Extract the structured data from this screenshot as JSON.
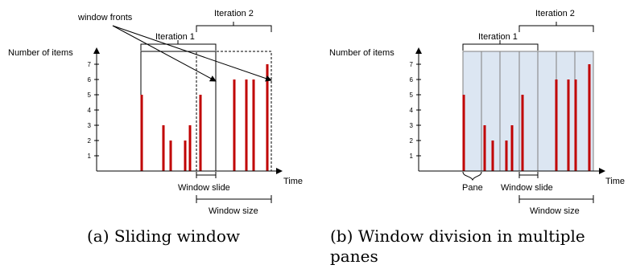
{
  "left": {
    "y_axis_label": "Number of items",
    "x_axis_label": "Time",
    "y_ticks": [
      "1",
      "2",
      "3",
      "4",
      "5",
      "6",
      "7"
    ],
    "labels": {
      "window_fronts": "window fronts",
      "iteration_1": "Iteration 1",
      "iteration_2": "Iteration 2",
      "window_slide": "Window slide",
      "window_size": "Window size"
    },
    "caption": "(a) Sliding window"
  },
  "right": {
    "y_axis_label": "Number of items",
    "x_axis_label": "Time",
    "y_ticks": [
      "1",
      "2",
      "3",
      "4",
      "5",
      "6",
      "7"
    ],
    "labels": {
      "iteration_1": "Iteration 1",
      "iteration_2": "Iteration 2",
      "pane": "Pane",
      "window_slide": "Window slide",
      "window_size": "Window size"
    },
    "caption_line1": "(b)  Window  division  in  multiple",
    "caption_line2": "panes"
  },
  "chart_data": [
    {
      "type": "bar",
      "values": [
        5,
        3,
        2,
        2,
        3,
        5,
        6,
        6,
        6,
        7
      ],
      "ylabel": "Number of items",
      "xlabel": "Time",
      "ylim": [
        0,
        7.5
      ]
    },
    {
      "type": "bar",
      "values": [
        5,
        3,
        2,
        2,
        3,
        5,
        6,
        6,
        6,
        7
      ],
      "ylabel": "Number of items",
      "xlabel": "Time",
      "ylim": [
        0,
        7.5
      ]
    }
  ],
  "colors": {
    "bar": "#c00000",
    "pane_fill": "#dce6f2",
    "pane_line": "#7f7f7f"
  }
}
